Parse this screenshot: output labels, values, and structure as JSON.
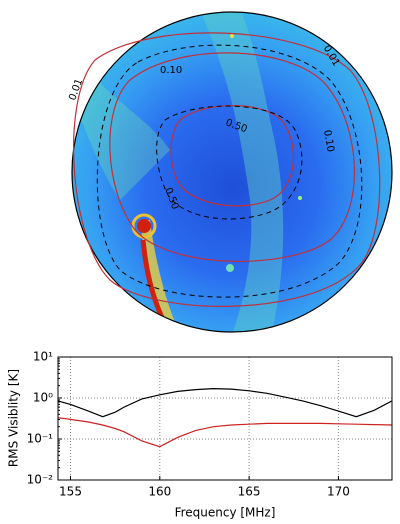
{
  "chart_data": {
    "type": "line",
    "map_contour_labels": [
      "0.01",
      "0.10",
      "0.50",
      "0.01",
      "0.10",
      "0.50"
    ],
    "xlabel": "Frequency [MHz]",
    "ylabel": "RMS Visiblity [K]",
    "x": [
      154.3,
      155,
      156,
      156.8,
      157.5,
      158,
      159,
      160,
      161,
      162,
      163,
      164,
      165,
      166,
      167,
      168,
      169,
      170,
      171,
      172,
      173
    ],
    "series": [
      {
        "name": "black",
        "color": "#000000",
        "values": [
          0.85,
          0.7,
          0.48,
          0.35,
          0.45,
          0.6,
          0.95,
          1.2,
          1.45,
          1.6,
          1.7,
          1.65,
          1.5,
          1.3,
          1.05,
          0.85,
          0.65,
          0.48,
          0.35,
          0.5,
          0.85
        ]
      },
      {
        "name": "red",
        "color": "#cc2222",
        "values": [
          0.33,
          0.3,
          0.26,
          0.22,
          0.18,
          0.15,
          0.09,
          0.065,
          0.11,
          0.16,
          0.2,
          0.22,
          0.23,
          0.24,
          0.24,
          0.24,
          0.24,
          0.235,
          0.23,
          0.225,
          0.22
        ]
      }
    ],
    "xlim": [
      154.3,
      173
    ],
    "xticks": [
      155,
      160,
      165,
      170
    ],
    "ylim": [
      0.01,
      10
    ],
    "yticks": [
      {
        "value": 0.01,
        "label": "10⁻²"
      },
      {
        "value": 0.1,
        "label": "10⁻¹"
      },
      {
        "value": 1,
        "label": "10⁰"
      },
      {
        "value": 10,
        "label": "10¹"
      }
    ],
    "log_y": true,
    "grid": true
  }
}
